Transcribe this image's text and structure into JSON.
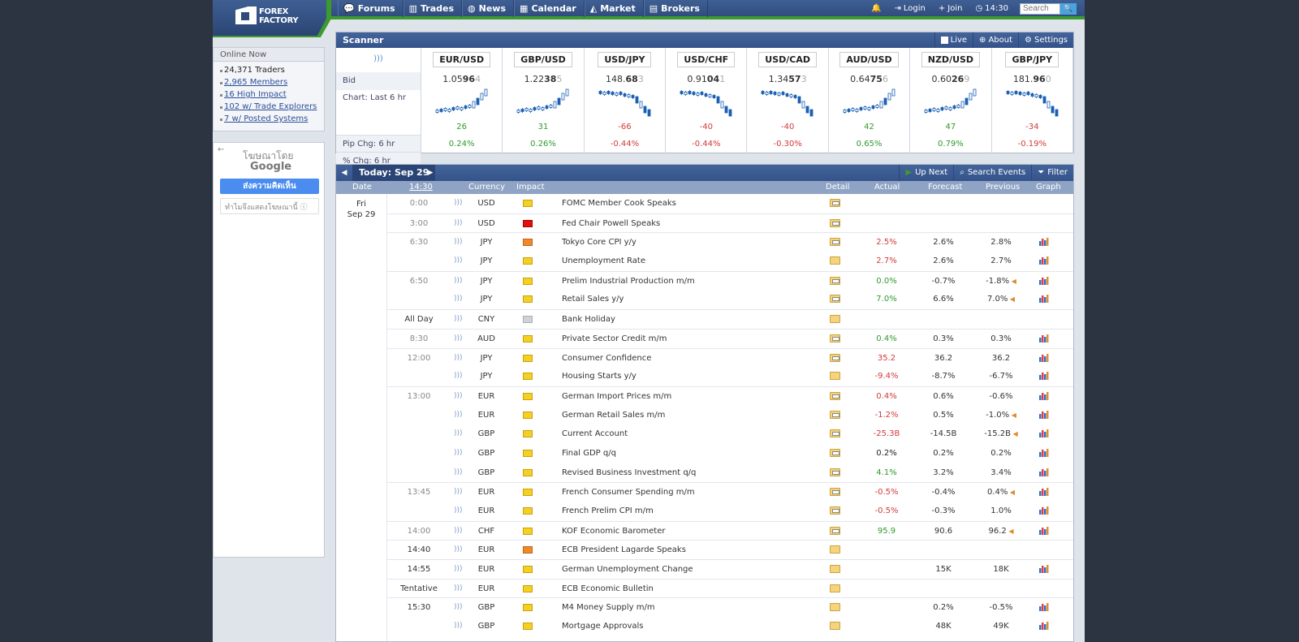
{
  "header": {
    "logo_line1": "FOREX",
    "logo_line2": "FACTORY",
    "nav": [
      {
        "icon": "forums-icon",
        "glyph": "💬",
        "label": "Forums"
      },
      {
        "icon": "trades-icon",
        "glyph": "▥",
        "label": "Trades"
      },
      {
        "icon": "news-icon",
        "glyph": "◍",
        "label": "News"
      },
      {
        "icon": "calendar-icon",
        "glyph": "▦",
        "label": "Calendar"
      },
      {
        "icon": "market-icon",
        "glyph": "◭",
        "label": "Market"
      },
      {
        "icon": "brokers-icon",
        "glyph": "▤",
        "label": "Brokers"
      }
    ],
    "login": "Login",
    "join": "Join",
    "time": "14:30",
    "search_placeholder": "Search"
  },
  "online": {
    "title": "Online Now",
    "traders": "24,371 Traders",
    "members": "2,965 Members",
    "high_impact": "16 High Impact",
    "explorers": "102 w/ Trade Explorers",
    "posted": "7 w/ Posted Systems"
  },
  "ad": {
    "by": "โฆษณาโดย",
    "google": "Google",
    "feedback": "ส่งความคิดเห็น",
    "why": "ทำไมจึงแสดงโฆษณานี้"
  },
  "scanner": {
    "title": "Scanner",
    "live": "Live",
    "about": "About",
    "settings": "Settings",
    "labels": {
      "bid": "Bid",
      "chart": "Chart: Last 6 hr",
      "pip": "Pip Chg: 6 hr",
      "pct": "% Chg: 6 hr"
    },
    "pairs": [
      {
        "name": "EUR/USD",
        "b1": "1.05",
        "b2": "96",
        "b3": "4",
        "pip": "26",
        "pct": "0.24%",
        "dir": "pos"
      },
      {
        "name": "GBP/USD",
        "b1": "1.22",
        "b2": "38",
        "b3": "5",
        "pip": "31",
        "pct": "0.26%",
        "dir": "pos"
      },
      {
        "name": "USD/JPY",
        "b1": "148.",
        "b2": "68",
        "b3": "3",
        "pip": "-66",
        "pct": "-0.44%",
        "dir": "neg"
      },
      {
        "name": "USD/CHF",
        "b1": "0.91",
        "b2": "04",
        "b3": "1",
        "pip": "-40",
        "pct": "-0.44%",
        "dir": "neg"
      },
      {
        "name": "USD/CAD",
        "b1": "1.34",
        "b2": "57",
        "b3": "3",
        "pip": "-40",
        "pct": "-0.30%",
        "dir": "neg"
      },
      {
        "name": "AUD/USD",
        "b1": "0.64",
        "b2": "75",
        "b3": "6",
        "pip": "42",
        "pct": "0.65%",
        "dir": "pos"
      },
      {
        "name": "NZD/USD",
        "b1": "0.60",
        "b2": "26",
        "b3": "9",
        "pip": "47",
        "pct": "0.79%",
        "dir": "pos"
      },
      {
        "name": "GBP/JPY",
        "b1": "181.",
        "b2": "96",
        "b3": "0",
        "pip": "-34",
        "pct": "-0.19%",
        "dir": "neg"
      }
    ]
  },
  "calendar": {
    "today": "Today: Sep 29",
    "up_next": "Up Next",
    "search_events": "Search Events",
    "filter": "Filter",
    "headers": {
      "date": "Date",
      "time": "14:30",
      "currency": "Currency",
      "impact": "Impact",
      "detail": "Detail",
      "actual": "Actual",
      "forecast": "Forecast",
      "previous": "Previous",
      "graph": "Graph"
    },
    "day": "Fri",
    "date": "Sep 29",
    "rows": [
      {
        "time": "0:00",
        "cur": "USD",
        "imp": "yel",
        "ev": "FOMC Member Cook Speaks",
        "det": "open",
        "act": "",
        "ad": "",
        "for": "",
        "prev": "",
        "pd": "",
        "graph": false,
        "sep": true
      },
      {
        "time": "3:00",
        "cur": "USD",
        "imp": "red",
        "ev": "Fed Chair Powell Speaks",
        "det": "open",
        "act": "",
        "ad": "",
        "for": "",
        "prev": "",
        "pd": "",
        "graph": false,
        "sep": true
      },
      {
        "time": "6:30",
        "cur": "JPY",
        "imp": "ora",
        "ev": "Tokyo Core CPI y/y",
        "det": "open",
        "act": "2.5%",
        "ad": "neg",
        "for": "2.6%",
        "prev": "2.8%",
        "pd": "",
        "graph": true,
        "sep": true
      },
      {
        "time": "",
        "cur": "JPY",
        "imp": "yel",
        "ev": "Unemployment Rate",
        "det": "closed",
        "act": "2.7%",
        "ad": "neg",
        "for": "2.6%",
        "prev": "2.7%",
        "pd": "",
        "graph": true,
        "sep": false
      },
      {
        "time": "6:50",
        "cur": "JPY",
        "imp": "yel",
        "ev": "Prelim Industrial Production m/m",
        "det": "open",
        "act": "0.0%",
        "ad": "pos",
        "for": "-0.7%",
        "prev": "-1.8%",
        "pd": "pos",
        "graph": true,
        "sep": true,
        "rev": true
      },
      {
        "time": "",
        "cur": "JPY",
        "imp": "yel",
        "ev": "Retail Sales y/y",
        "det": "open",
        "act": "7.0%",
        "ad": "pos",
        "for": "6.6%",
        "prev": "7.0%",
        "pd": "pos",
        "graph": true,
        "sep": false,
        "rev": true
      },
      {
        "time": "All Day",
        "cur": "CNY",
        "imp": "gra",
        "ev": "Bank Holiday",
        "det": "closed",
        "act": "",
        "ad": "",
        "for": "",
        "prev": "",
        "pd": "",
        "graph": false,
        "sep": true,
        "dark": true
      },
      {
        "time": "8:30",
        "cur": "AUD",
        "imp": "yel",
        "ev": "Private Sector Credit m/m",
        "det": "open",
        "act": "0.4%",
        "ad": "pos",
        "for": "0.3%",
        "prev": "0.3%",
        "pd": "",
        "graph": true,
        "sep": true
      },
      {
        "time": "12:00",
        "cur": "JPY",
        "imp": "yel",
        "ev": "Consumer Confidence",
        "det": "open",
        "act": "35.2",
        "ad": "neg",
        "for": "36.2",
        "prev": "36.2",
        "pd": "",
        "graph": true,
        "sep": true
      },
      {
        "time": "",
        "cur": "JPY",
        "imp": "yel",
        "ev": "Housing Starts y/y",
        "det": "closed",
        "act": "-9.4%",
        "ad": "neg",
        "for": "-8.7%",
        "prev": "-6.7%",
        "pd": "",
        "graph": true,
        "sep": false
      },
      {
        "time": "13:00",
        "cur": "EUR",
        "imp": "yel",
        "ev": "German Import Prices m/m",
        "det": "open",
        "act": "0.4%",
        "ad": "neg",
        "for": "0.6%",
        "prev": "-0.6%",
        "pd": "",
        "graph": true,
        "sep": true
      },
      {
        "time": "",
        "cur": "EUR",
        "imp": "yel",
        "ev": "German Retail Sales m/m",
        "det": "open",
        "act": "-1.2%",
        "ad": "neg",
        "for": "0.5%",
        "prev": "-1.0%",
        "pd": "neg",
        "graph": true,
        "sep": false,
        "rev": true
      },
      {
        "time": "",
        "cur": "GBP",
        "imp": "yel",
        "ev": "Current Account",
        "det": "open",
        "act": "-25.3B",
        "ad": "neg",
        "for": "-14.5B",
        "prev": "-15.2B",
        "pd": "neg",
        "graph": true,
        "sep": false,
        "rev": true
      },
      {
        "time": "",
        "cur": "GBP",
        "imp": "yel",
        "ev": "Final GDP q/q",
        "det": "open",
        "act": "0.2%",
        "ad": "",
        "for": "0.2%",
        "prev": "0.2%",
        "pd": "",
        "graph": true,
        "sep": false
      },
      {
        "time": "",
        "cur": "GBP",
        "imp": "yel",
        "ev": "Revised Business Investment q/q",
        "det": "open",
        "act": "4.1%",
        "ad": "pos",
        "for": "3.2%",
        "prev": "3.4%",
        "pd": "",
        "graph": true,
        "sep": false
      },
      {
        "time": "13:45",
        "cur": "EUR",
        "imp": "yel",
        "ev": "French Consumer Spending m/m",
        "det": "open",
        "act": "-0.5%",
        "ad": "neg",
        "for": "-0.4%",
        "prev": "0.4%",
        "pd": "pos",
        "graph": true,
        "sep": true,
        "rev": true
      },
      {
        "time": "",
        "cur": "EUR",
        "imp": "yel",
        "ev": "French Prelim CPI m/m",
        "det": "open",
        "act": "-0.5%",
        "ad": "neg",
        "for": "-0.3%",
        "prev": "1.0%",
        "pd": "",
        "graph": true,
        "sep": false
      },
      {
        "time": "14:00",
        "cur": "CHF",
        "imp": "yel",
        "ev": "KOF Economic Barometer",
        "det": "open",
        "act": "95.9",
        "ad": "pos",
        "for": "90.6",
        "prev": "96.2",
        "pd": "pos",
        "graph": true,
        "sep": true,
        "rev": true
      },
      {
        "time": "14:40",
        "cur": "EUR",
        "imp": "ora",
        "ev": "ECB President Lagarde Speaks",
        "det": "closed",
        "act": "",
        "ad": "",
        "for": "",
        "prev": "",
        "pd": "",
        "graph": false,
        "sep": true,
        "dark": true,
        "next": true
      },
      {
        "time": "14:55",
        "cur": "EUR",
        "imp": "yel",
        "ev": "German Unemployment Change",
        "det": "closed",
        "act": "",
        "ad": "",
        "for": "15K",
        "prev": "18K",
        "pd": "",
        "graph": true,
        "sep": true,
        "dark": true
      },
      {
        "time": "Tentative",
        "cur": "EUR",
        "imp": "yel",
        "ev": "ECB Economic Bulletin",
        "det": "closed",
        "act": "",
        "ad": "",
        "for": "",
        "prev": "",
        "pd": "",
        "graph": false,
        "sep": true,
        "dark": true
      },
      {
        "time": "15:30",
        "cur": "GBP",
        "imp": "yel",
        "ev": "M4 Money Supply m/m",
        "det": "closed",
        "act": "",
        "ad": "",
        "for": "0.2%",
        "prev": "-0.5%",
        "pd": "",
        "graph": true,
        "sep": true,
        "dark": true
      },
      {
        "time": "",
        "cur": "GBP",
        "imp": "yel",
        "ev": "Mortgage Approvals",
        "det": "closed",
        "act": "",
        "ad": "",
        "for": "48K",
        "prev": "49K",
        "pd": "",
        "graph": true,
        "sep": false,
        "dark": true
      }
    ]
  }
}
